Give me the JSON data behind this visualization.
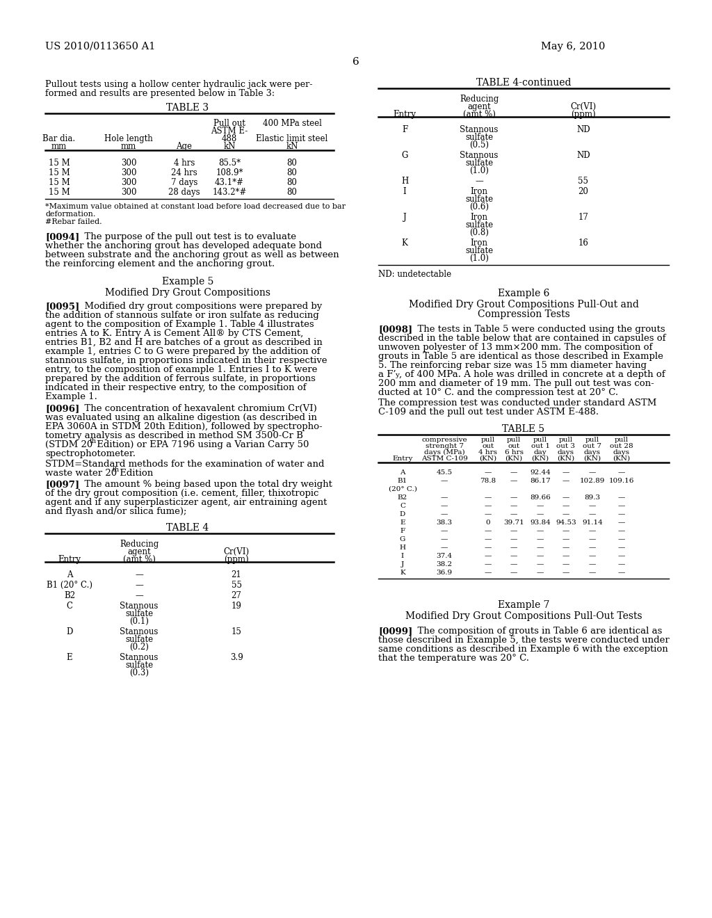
{
  "patent_number": "US 2010/0113650 A1",
  "date": "May 6, 2010",
  "page_number": "6",
  "bg": "#ffffff"
}
